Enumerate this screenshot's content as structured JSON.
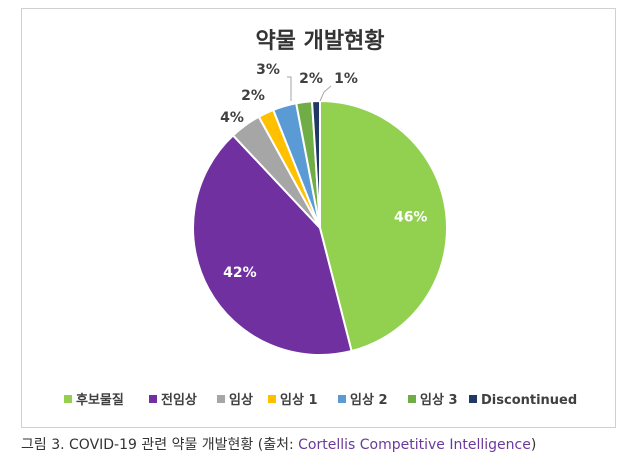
{
  "chart_data": {
    "type": "pie",
    "title": "약물 개발현황",
    "categories": [
      "후보물질",
      "전임상",
      "임상",
      "임상 1",
      "임상 2",
      "임상 3",
      "Discontinued"
    ],
    "values": [
      46,
      42,
      4,
      2,
      3,
      2,
      1
    ],
    "value_labels": [
      "46%",
      "42%",
      "4%",
      "2%",
      "3%",
      "2%",
      "1%"
    ],
    "colors": [
      "#92d050",
      "#7030a0",
      "#a6a6a6",
      "#ffc000",
      "#5b9bd5",
      "#70ad47",
      "#1f3864"
    ],
    "legend_position": "bottom",
    "grid": false
  },
  "caption": {
    "prefix": "그림 3. COVID-19 관련 약물 개발현황 (출처: ",
    "source": "Cortellis Competitive Intelligence",
    "suffix": ")"
  }
}
